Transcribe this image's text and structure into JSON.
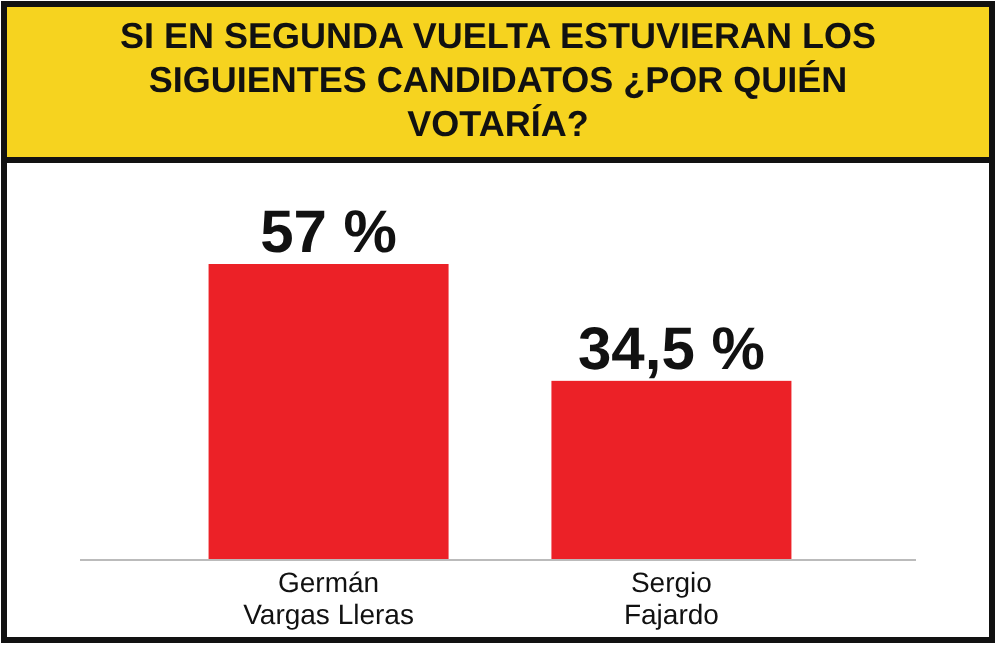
{
  "chart_data": {
    "type": "bar",
    "title": "SI EN SEGUNDA VUELTA ESTUVIERAN LOS SIGUIENTES CANDIDATOS ¿POR QUIÉN VOTARÍA?",
    "categories": [
      "Germán Vargas Lleras",
      "Sergio Fajardo"
    ],
    "values": [
      57,
      34.5
    ],
    "value_labels": [
      "57 %",
      "34,5 %"
    ],
    "color": "#ec2127"
  }
}
